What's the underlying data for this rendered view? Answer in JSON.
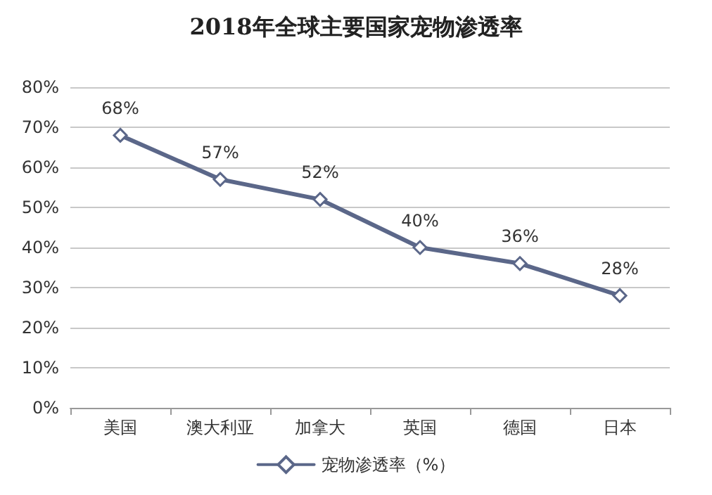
{
  "chart_data": {
    "type": "line",
    "title": "2018年全球主要国家宠物渗透率",
    "categories": [
      "美国",
      "澳大利亚",
      "加拿大",
      "英国",
      "德国",
      "日本"
    ],
    "series": [
      {
        "name": "宠物渗透率（%）",
        "color": "#5b6789",
        "values": [
          68,
          57,
          52,
          40,
          36,
          28
        ],
        "value_labels": [
          "68%",
          "57%",
          "52%",
          "40%",
          "36%",
          "28%"
        ]
      }
    ],
    "ylim": [
      0,
      80
    ],
    "yticks": [
      {
        "value": 0,
        "label": "0%"
      },
      {
        "value": 10,
        "label": "10%"
      },
      {
        "value": 20,
        "label": "20%"
      },
      {
        "value": 30,
        "label": "30%"
      },
      {
        "value": 40,
        "label": "40%"
      },
      {
        "value": 50,
        "label": "50%"
      },
      {
        "value": 60,
        "label": "60%"
      },
      {
        "value": 70,
        "label": "70%"
      },
      {
        "value": 80,
        "label": "80%"
      }
    ],
    "grid": "y",
    "legend": "bottom",
    "marker": "diamond",
    "line_style": "solid"
  }
}
